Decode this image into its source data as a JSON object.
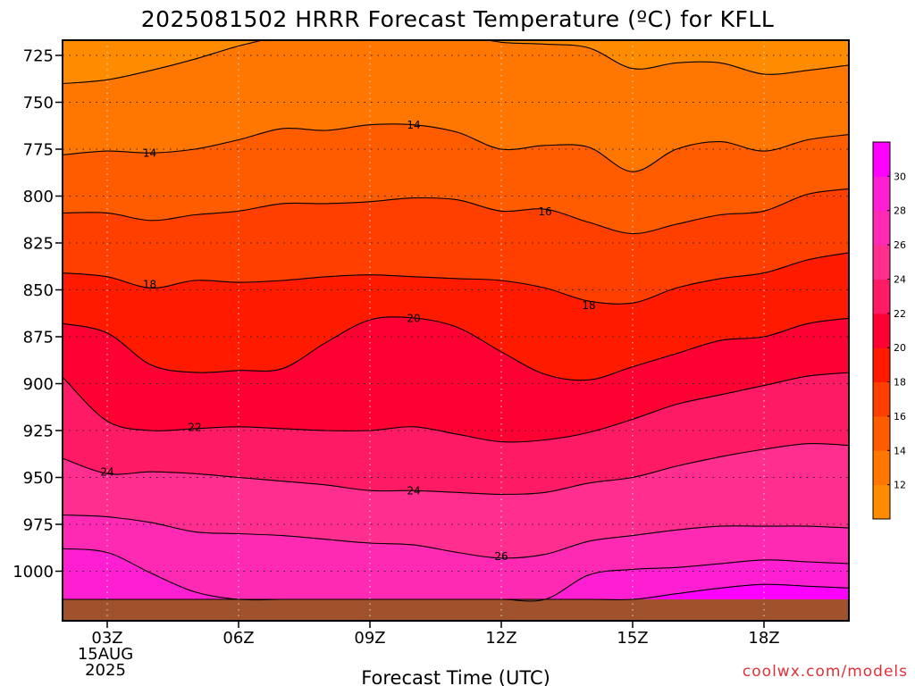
{
  "chart_data": {
    "type": "heatmap",
    "title": "2025081502 HRRR Forecast Temperature (ºC) for KFLL",
    "xlabel": "Forecast Time (UTC)",
    "ylabel": "",
    "credit": "coolwx.com/models",
    "x_range_hours": [
      2,
      20
    ],
    "y_range_hpa": [
      714,
      1015
    ],
    "y_scale": "pressure-inverted",
    "x_ticks": [
      {
        "hour": 3,
        "label": "03Z",
        "sub": [
          "15AUG",
          "2025"
        ]
      },
      {
        "hour": 6,
        "label": "06Z",
        "sub": []
      },
      {
        "hour": 9,
        "label": "09Z",
        "sub": []
      },
      {
        "hour": 12,
        "label": "12Z",
        "sub": []
      },
      {
        "hour": 15,
        "label": "15Z",
        "sub": []
      },
      {
        "hour": 18,
        "label": "18Z",
        "sub": []
      }
    ],
    "y_ticks": [
      {
        "value": 725,
        "label": "725"
      },
      {
        "value": 750,
        "label": "750"
      },
      {
        "value": 775,
        "label": "775"
      },
      {
        "value": 800,
        "label": "800"
      },
      {
        "value": 825,
        "label": "825"
      },
      {
        "value": 850,
        "label": "850"
      },
      {
        "value": 875,
        "label": "875"
      },
      {
        "value": 900,
        "label": "900"
      },
      {
        "value": 925,
        "label": "925"
      },
      {
        "value": 950,
        "label": "950"
      },
      {
        "value": 975,
        "label": "975"
      },
      {
        "value": 1000,
        "label": "1000"
      }
    ],
    "grid": true,
    "colorbar": {
      "placement": "right",
      "levels": [
        12,
        14,
        16,
        18,
        20,
        22,
        24,
        26,
        28,
        30
      ],
      "labels": [
        "12",
        "14",
        "16",
        "18",
        "20",
        "22",
        "24",
        "26",
        "28",
        "30"
      ],
      "colors": [
        "#ff8c00",
        "#ff7700",
        "#ff5c00",
        "#ff3f00",
        "#ff1a00",
        "#ff0033",
        "#ff1a66",
        "#ff2e8f",
        "#ff2ab4",
        "#ff1fd2",
        "#ff00ff"
      ]
    },
    "hours": [
      2,
      3,
      4,
      5,
      6,
      7,
      8,
      9,
      10,
      11,
      12,
      13,
      14,
      15,
      16,
      17,
      18,
      19,
      20
    ],
    "contours": [
      {
        "level": 12,
        "pressures": [
          740,
          738,
          733,
          727,
          720,
          715,
          714,
          714,
          714,
          714,
          718,
          719,
          721,
          732,
          729,
          729,
          735,
          733,
          730
        ]
      },
      {
        "level": 14,
        "pressures": [
          778,
          776,
          777,
          775,
          770,
          764,
          765,
          762,
          762,
          766,
          775,
          773,
          774,
          787,
          775,
          771,
          776,
          770,
          767
        ]
      },
      {
        "level": 16,
        "pressures": [
          809,
          809,
          813,
          810,
          808,
          804,
          804,
          803,
          801,
          802,
          808,
          807,
          814,
          820,
          815,
          810,
          808,
          799,
          796
        ]
      },
      {
        "level": 18,
        "pressures": [
          841,
          843,
          849,
          845,
          846,
          845,
          843,
          842,
          843,
          844,
          845,
          849,
          856,
          857,
          849,
          844,
          841,
          834,
          830
        ]
      },
      {
        "level": 20,
        "pressures": [
          868,
          873,
          890,
          894,
          893,
          892,
          878,
          866,
          865,
          870,
          883,
          895,
          898,
          891,
          884,
          877,
          875,
          868,
          865
        ]
      },
      {
        "level": 22,
        "pressures": [
          897,
          920,
          925,
          924,
          923,
          924,
          925,
          925,
          923,
          927,
          931,
          930,
          926,
          919,
          911,
          906,
          901,
          896,
          894
        ]
      },
      {
        "level": 24,
        "pressures": [
          940,
          948,
          947,
          948,
          950,
          952,
          954,
          957,
          957,
          958,
          959,
          958,
          953,
          950,
          944,
          939,
          935,
          932,
          933
        ]
      },
      {
        "level": 26,
        "pressures": [
          970,
          971,
          974,
          979,
          980,
          981,
          983,
          985,
          986,
          990,
          993,
          991,
          984,
          981,
          978,
          976,
          976,
          976,
          977
        ]
      },
      {
        "level": 28,
        "pressures": [
          988,
          990,
          1001,
          1011,
          1015,
          1015,
          1015,
          1015,
          1015,
          1015,
          1015,
          1015,
          1002,
          999,
          998,
          996,
          994,
          995,
          996
        ]
      },
      {
        "level": 30,
        "pressures": [
          1015,
          1015,
          1015,
          1015,
          1015,
          1015,
          1015,
          1015,
          1015,
          1015,
          1015,
          1015,
          1015,
          1015,
          1012,
          1009,
          1007,
          1008,
          1009
        ]
      }
    ],
    "contour_labels": [
      {
        "text": "14",
        "hour": 3.97,
        "pressure": 777
      },
      {
        "text": "14",
        "hour": 10,
        "pressure": 762
      },
      {
        "text": "16",
        "hour": 13,
        "pressure": 808
      },
      {
        "text": "18",
        "hour": 3.97,
        "pressure": 847
      },
      {
        "text": "18",
        "hour": 14,
        "pressure": 858
      },
      {
        "text": "20",
        "hour": 10,
        "pressure": 865
      },
      {
        "text": "22",
        "hour": 5,
        "pressure": 923
      },
      {
        "text": "24",
        "hour": 3,
        "pressure": 947
      },
      {
        "text": "24",
        "hour": 10,
        "pressure": 957
      },
      {
        "text": "26",
        "hour": 12,
        "pressure": 992
      }
    ],
    "surface_color": "#a0522d"
  }
}
